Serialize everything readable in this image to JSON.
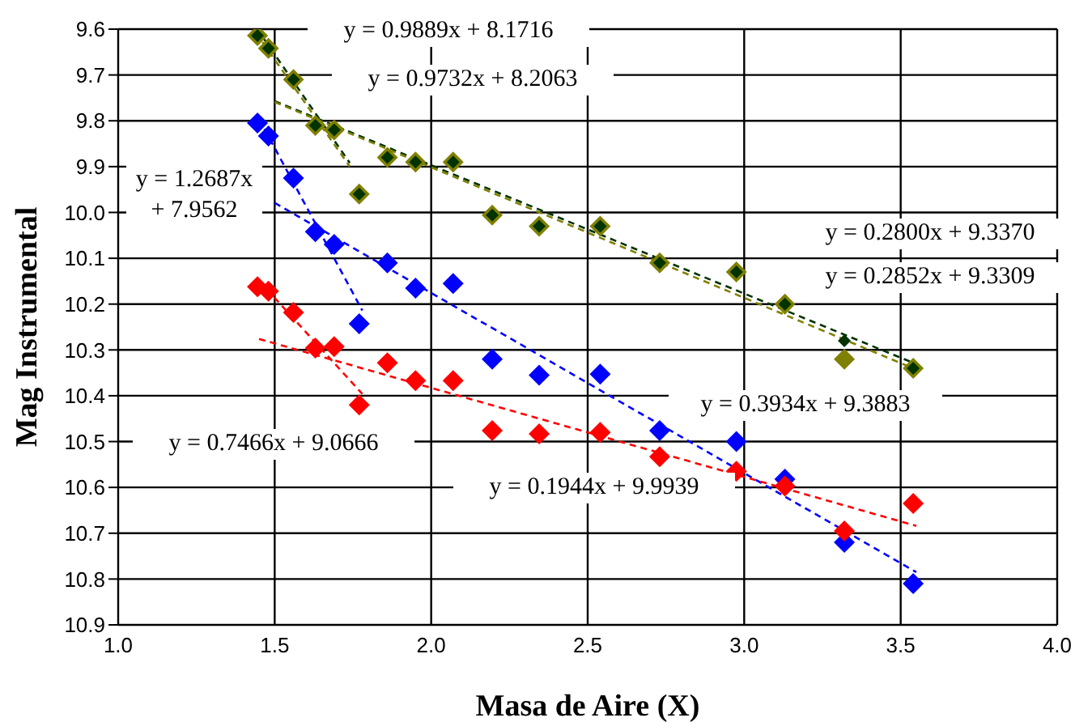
{
  "chart_data": {
    "type": "scatter",
    "xlabel": "Masa de Aire (X)",
    "ylabel": "Mag Instrumental",
    "x": [
      1.445,
      1.48,
      1.56,
      1.63,
      1.69,
      1.77,
      1.86,
      1.95,
      2.07,
      2.195,
      2.345,
      2.54,
      2.73,
      2.975,
      3.13,
      3.32,
      3.54
    ],
    "series": [
      {
        "color": "#808000",
        "values": [
          9.614,
          9.642,
          9.71,
          9.81,
          9.82,
          9.96,
          9.88,
          9.89,
          9.89,
          10.006,
          10.03,
          10.03,
          10.11,
          10.13,
          10.2,
          10.32,
          10.34
        ]
      },
      {
        "color": "#003300",
        "values": [
          9.614,
          9.642,
          9.71,
          9.81,
          9.82,
          9.96,
          9.88,
          9.89,
          9.89,
          10.006,
          10.03,
          10.03,
          10.11,
          10.13,
          10.2,
          10.28,
          10.34
        ]
      },
      {
        "color": "#0000ff",
        "values": [
          9.805,
          9.833,
          9.925,
          10.042,
          10.07,
          10.243,
          10.11,
          10.165,
          10.155,
          10.32,
          10.355,
          10.353,
          10.476,
          10.5,
          10.582,
          10.72,
          10.81
        ]
      },
      {
        "color": "#ff0000",
        "values": [
          10.162,
          10.172,
          10.218,
          10.296,
          10.293,
          10.42,
          10.328,
          10.367,
          10.367,
          10.476,
          10.483,
          10.48,
          10.533,
          10.565,
          10.597,
          10.695,
          10.635
        ]
      },
      {
        "type": "line",
        "color": "#003300",
        "x": [
          1.445,
          1.74
        ],
        "values": [
          9.601,
          9.892
        ],
        "marker": "none"
      },
      {
        "type": "line",
        "color": "#808000",
        "x": [
          1.44,
          1.74
        ],
        "values": [
          9.608,
          9.9
        ],
        "marker": "none"
      },
      {
        "type": "line",
        "color": "#003300",
        "x": [
          1.5,
          3.55
        ],
        "values": [
          9.757,
          10.331
        ],
        "marker": "none"
      },
      {
        "type": "line",
        "color": "#808000",
        "x": [
          1.5,
          3.55
        ],
        "values": [
          9.759,
          10.343
        ],
        "marker": "none"
      },
      {
        "type": "line",
        "color": "#0000ff",
        "x": [
          1.45,
          1.78
        ],
        "values": [
          9.796,
          10.214
        ],
        "marker": "none"
      },
      {
        "type": "line",
        "color": "#0000ff",
        "x": [
          1.5,
          3.55
        ],
        "values": [
          9.979,
          10.785
        ],
        "marker": "none"
      },
      {
        "type": "line",
        "color": "#ff0000",
        "x": [
          1.45,
          1.78
        ],
        "values": [
          10.149,
          10.396
        ],
        "marker": "none"
      },
      {
        "type": "line",
        "color": "#ff0000",
        "x": [
          1.45,
          3.55
        ],
        "values": [
          10.276,
          10.684
        ],
        "marker": "none"
      }
    ],
    "annotations": [
      "y = 0.9889x + 8.1716",
      "y = 0.9732x + 8.2063",
      "y = 1.2687x + 7.9562",
      "y = 0.2800x + 9.3370",
      "y = 0.2852x + 9.3309",
      "y = 0.3934x + 9.3883",
      "y = 0.7466x + 9.0666",
      "y = 0.1944x + 9.9939"
    ],
    "xlim": [
      1,
      4
    ],
    "xticks": [
      {
        "value": 1,
        "label": "1.0"
      },
      1.5,
      {
        "value": 2,
        "label": "2.0"
      },
      2.5,
      {
        "value": 3,
        "label": "3.0"
      },
      3.5,
      {
        "value": 4,
        "label": "4.0"
      }
    ],
    "ylim": [
      10.9,
      9.6
    ],
    "yticks": [
      9.6,
      9.7,
      9.8,
      9.9,
      {
        "value": 10,
        "label": "10.0"
      },
      10.1,
      10.2,
      10.3,
      10.4,
      10.5,
      10.6,
      10.7,
      10.8,
      10.9
    ],
    "grid": true,
    "marker": "diamond",
    "line_style": "dashed",
    "legend": false
  }
}
